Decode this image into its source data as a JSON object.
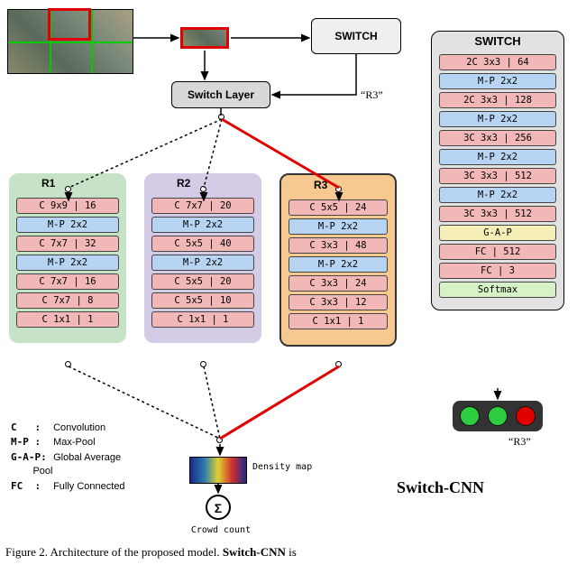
{
  "figure": {
    "caption_prefix": "Figure 2.",
    "caption_text": "Architecture of the proposed model.",
    "model_name": "Switch-CNN",
    "model_name_suffix": "is"
  },
  "colors": {
    "conv": "#f2b7b7",
    "pool": "#b7d4f2",
    "gap": "#f5efb7",
    "softmax": "#d8f2c7",
    "r1_bg": "#c7e3c7",
    "r2_bg": "#d4cbe6",
    "r3_bg": "#f5c98f",
    "switch_panel_bg": "#e2e2e2",
    "grid_green": "#00cc00",
    "sel_red": "#e00000",
    "route_red": "#e00000",
    "route_dash": "#000000",
    "tlight_green": "#2ecc40",
    "tlight_red": "#e00000"
  },
  "switch_box": {
    "label": "SWITCH"
  },
  "switch_layer": {
    "label": "Switch Layer"
  },
  "route_label": "“R3”",
  "route_label2": "“R3”",
  "legend": {
    "C": "Convolution",
    "MP": "Max-Pool",
    "GAP": "Global Average\nPool",
    "FC": "Fully Connected"
  },
  "density": {
    "label": "Density map"
  },
  "sigma": {
    "glyph": "Σ",
    "label": "Crowd count"
  },
  "regressors": {
    "R1": {
      "label": "R1",
      "layers": [
        {
          "t": "conv",
          "txt": "C 9x9 | 16"
        },
        {
          "t": "pool",
          "txt": "M-P 2x2"
        },
        {
          "t": "conv",
          "txt": "C 7x7 | 32"
        },
        {
          "t": "pool",
          "txt": "M-P 2x2"
        },
        {
          "t": "conv",
          "txt": "C 7x7 | 16"
        },
        {
          "t": "conv",
          "txt": "C 7x7 | 8"
        },
        {
          "t": "conv",
          "txt": "C 1x1 | 1"
        }
      ]
    },
    "R2": {
      "label": "R2",
      "layers": [
        {
          "t": "conv",
          "txt": "C 7x7 | 20"
        },
        {
          "t": "pool",
          "txt": "M-P 2x2"
        },
        {
          "t": "conv",
          "txt": "C 5x5 | 40"
        },
        {
          "t": "pool",
          "txt": "M-P 2x2"
        },
        {
          "t": "conv",
          "txt": "C 5x5 | 20"
        },
        {
          "t": "conv",
          "txt": "C 5x5 | 10"
        },
        {
          "t": "conv",
          "txt": "C 1x1 | 1"
        }
      ]
    },
    "R3": {
      "label": "R3",
      "layers": [
        {
          "t": "conv",
          "txt": "C 5x5 | 24"
        },
        {
          "t": "pool",
          "txt": "M-P 2x2"
        },
        {
          "t": "conv",
          "txt": "C 3x3 | 48"
        },
        {
          "t": "pool",
          "txt": "M-P 2x2"
        },
        {
          "t": "conv",
          "txt": "C 3x3 | 24"
        },
        {
          "t": "conv",
          "txt": "C 3x3 | 12"
        },
        {
          "t": "conv",
          "txt": "C 1x1 | 1"
        }
      ]
    }
  },
  "switch_detail": {
    "label": "SWITCH",
    "layers": [
      {
        "t": "conv",
        "txt": "2C 3x3 | 64"
      },
      {
        "t": "pool",
        "txt": "M-P 2x2"
      },
      {
        "t": "conv",
        "txt": "2C 3x3 | 128"
      },
      {
        "t": "pool",
        "txt": "M-P 2x2"
      },
      {
        "t": "conv",
        "txt": "3C 3x3 | 256"
      },
      {
        "t": "pool",
        "txt": "M-P 2x2"
      },
      {
        "t": "conv",
        "txt": "3C 3x3 | 512"
      },
      {
        "t": "pool",
        "txt": "M-P 2x2"
      },
      {
        "t": "conv",
        "txt": "3C 3x3 | 512"
      },
      {
        "t": "gap",
        "txt": "G-A-P"
      },
      {
        "t": "fc",
        "txt": "FC | 512"
      },
      {
        "t": "fc",
        "txt": "FC | 3"
      },
      {
        "t": "soft",
        "txt": "Softmax"
      }
    ]
  },
  "tlight": {
    "states": [
      "green",
      "green",
      "red"
    ]
  }
}
